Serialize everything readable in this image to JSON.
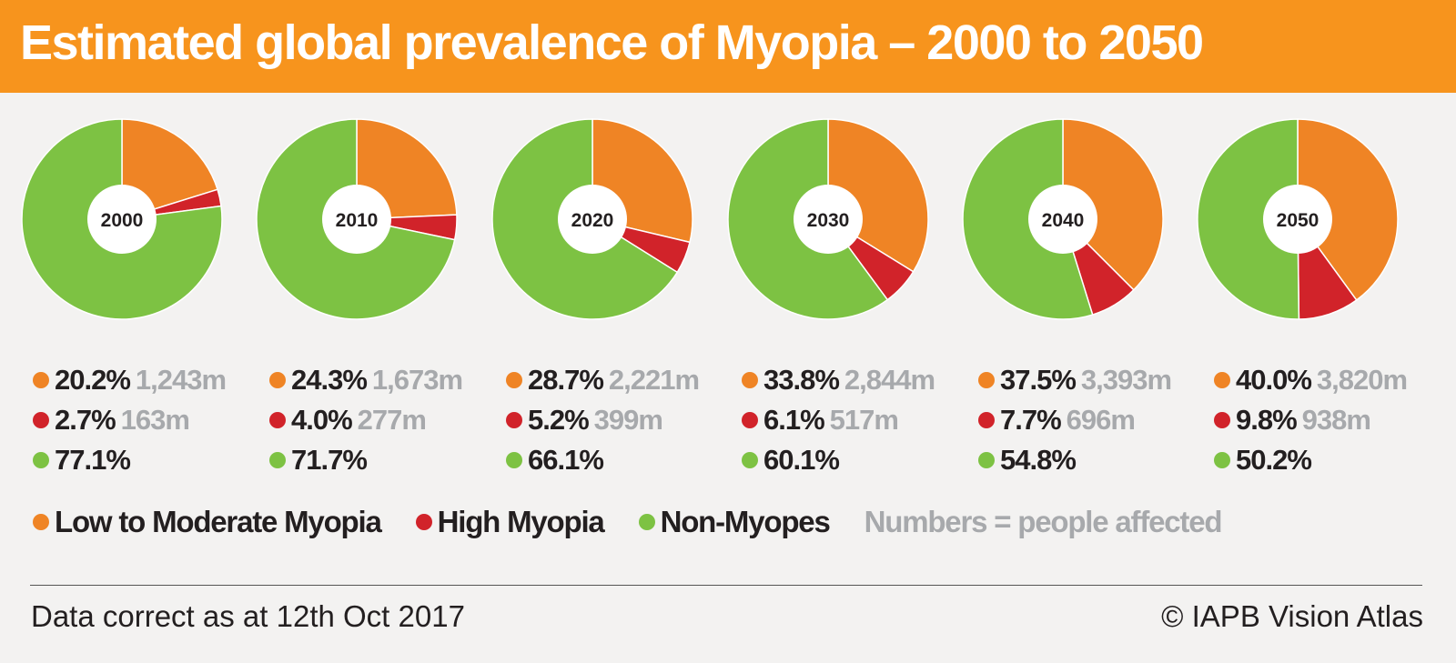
{
  "title": "Estimated global prevalence of Myopia – 2000 to 2050",
  "colors": {
    "low_moderate": "#ef8425",
    "high": "#d1232a",
    "non_myopes": "#7dc243",
    "header_bg": "#f7941d",
    "count_text": "#a7a9ac"
  },
  "chart_data": {
    "type": "pie",
    "series_order": [
      "Low to Moderate Myopia",
      "High Myopia",
      "Non-Myopes"
    ],
    "charts": [
      {
        "year": "2000",
        "values": [
          20.2,
          2.7,
          77.1
        ],
        "low_pct": "20.2%",
        "low_count": "1,243m",
        "high_pct": "2.7%",
        "high_count": "163m",
        "non_pct": "77.1%"
      },
      {
        "year": "2010",
        "values": [
          24.3,
          4.0,
          71.7
        ],
        "low_pct": "24.3%",
        "low_count": "1,673m",
        "high_pct": "4.0%",
        "high_count": "277m",
        "non_pct": "71.7%"
      },
      {
        "year": "2020",
        "values": [
          28.7,
          5.2,
          66.1
        ],
        "low_pct": "28.7%",
        "low_count": "2,221m",
        "high_pct": "5.2%",
        "high_count": "399m",
        "non_pct": "66.1%"
      },
      {
        "year": "2030",
        "values": [
          33.8,
          6.1,
          60.1
        ],
        "low_pct": "33.8%",
        "low_count": "2,844m",
        "high_pct": "6.1%",
        "high_count": "517m",
        "non_pct": "60.1%"
      },
      {
        "year": "2040",
        "values": [
          37.5,
          7.7,
          54.8
        ],
        "low_pct": "37.5%",
        "low_count": "3,393m",
        "high_pct": "7.7%",
        "high_count": "696m",
        "non_pct": "54.8%"
      },
      {
        "year": "2050",
        "values": [
          40.0,
          9.8,
          50.2
        ],
        "low_pct": "40.0%",
        "low_count": "3,820m",
        "high_pct": "9.8%",
        "high_count": "938m",
        "non_pct": "50.2%"
      }
    ]
  },
  "legend": {
    "items": [
      "Low to Moderate Myopia",
      "High Myopia",
      "Non-Myopes"
    ],
    "note": "Numbers = people affected"
  },
  "footer": {
    "left": "Data correct as at 12th Oct 2017",
    "right": "© IAPB Vision Atlas"
  }
}
